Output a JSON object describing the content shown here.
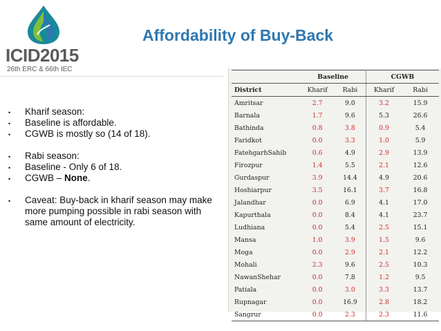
{
  "logo": {
    "text": "ICID2015",
    "subtitle": "26th ERC & 66th IEC",
    "colors": [
      "#1a8a9a",
      "#7fbf3f",
      "#2f78b0"
    ]
  },
  "title": "Affordability of Buy-Back",
  "bullets": [
    {
      "text": "Kharif season:"
    },
    {
      "text": "Baseline is affordable."
    },
    {
      "text": "CGWB is mostly so (14 of 18)."
    },
    {
      "text": "Rabi season:"
    },
    {
      "text": "Baseline - Only 6 of 18."
    },
    {
      "text_prefix": "CGWB – ",
      "text_strong": "None",
      "text_suffix": "."
    },
    {
      "text": "Caveat: Buy-back in kharif season may make more pumping possible in rabi season with same amount of electricity."
    }
  ],
  "table": {
    "group_headers": [
      "Baseline",
      "CGWB"
    ],
    "column_headers": [
      "District",
      "Kharif",
      "Rabi",
      "Kharif",
      "Rabi"
    ],
    "rows": [
      {
        "district": "Amritsar",
        "b_kharif": "2.7",
        "b_rabi": "9.0",
        "c_kharif": "3.2",
        "c_rabi": "15.9"
      },
      {
        "district": "Barnala",
        "b_kharif": "1.7",
        "b_rabi": "9.6",
        "c_kharif": "5.3",
        "c_rabi": "26.6"
      },
      {
        "district": "Bathinda",
        "b_kharif": "0.8",
        "b_rabi": "3.8",
        "c_kharif": "0.9",
        "c_rabi": "5.4"
      },
      {
        "district": "Faridkot",
        "b_kharif": "0.0",
        "b_rabi": "3.3",
        "c_kharif": "1.0",
        "c_rabi": "5.9"
      },
      {
        "district": "FatehgarhSahib",
        "b_kharif": "0.6",
        "b_rabi": "4.9",
        "c_kharif": "2.9",
        "c_rabi": "13.9"
      },
      {
        "district": "Firozpur",
        "b_kharif": "1.4",
        "b_rabi": "5.5",
        "c_kharif": "2.1",
        "c_rabi": "12.6"
      },
      {
        "district": "Gurdaspur",
        "b_kharif": "3.9",
        "b_rabi": "14.4",
        "c_kharif": "4.9",
        "c_rabi": "20.6"
      },
      {
        "district": "Hoshiarpur",
        "b_kharif": "3.5",
        "b_rabi": "16.1",
        "c_kharif": "3.7",
        "c_rabi": "16.8"
      },
      {
        "district": "Jalandhar",
        "b_kharif": "0.0",
        "b_rabi": "6.9",
        "c_kharif": "4.1",
        "c_rabi": "17.0"
      },
      {
        "district": "Kapurthala",
        "b_kharif": "0.0",
        "b_rabi": "8.4",
        "c_kharif": "4.1",
        "c_rabi": "23.7"
      },
      {
        "district": "Ludhiana",
        "b_kharif": "0.0",
        "b_rabi": "5.4",
        "c_kharif": "2.5",
        "c_rabi": "15.1"
      },
      {
        "district": "Mansa",
        "b_kharif": "1.0",
        "b_rabi": "3.9",
        "c_kharif": "1.5",
        "c_rabi": "9.6"
      },
      {
        "district": "Moga",
        "b_kharif": "0.0",
        "b_rabi": "2.9",
        "c_kharif": "2.1",
        "c_rabi": "12.2"
      },
      {
        "district": "Mohali",
        "b_kharif": "2.3",
        "b_rabi": "9.6",
        "c_kharif": "2.5",
        "c_rabi": "10.3"
      },
      {
        "district": "NawanShehar",
        "b_kharif": "0.0",
        "b_rabi": "7.8",
        "c_kharif": "1.2",
        "c_rabi": "9.5"
      },
      {
        "district": "Patiala",
        "b_kharif": "0.0",
        "b_rabi": "3.0",
        "c_kharif": "3.3",
        "c_rabi": "13.7"
      },
      {
        "district": "Rupnagar",
        "b_kharif": "0.0",
        "b_rabi": "16.9",
        "c_kharif": "2.8",
        "c_rabi": "18.2"
      },
      {
        "district": "Sangrur",
        "b_kharif": "0.0",
        "b_rabi": "2.3",
        "c_kharif": "2.3",
        "c_rabi": "11.6"
      }
    ],
    "red_cells": {
      "b_kharif": [
        0,
        1,
        2,
        3,
        4,
        5,
        6,
        7,
        8,
        9,
        10,
        11,
        12,
        13,
        14,
        15,
        16,
        17
      ],
      "b_rabi": [
        2,
        3,
        11,
        12,
        15,
        17
      ],
      "c_kharif": [
        0,
        2,
        3,
        4,
        5,
        7,
        10,
        11,
        12,
        13,
        14,
        15,
        16,
        17
      ],
      "c_rabi": []
    }
  }
}
